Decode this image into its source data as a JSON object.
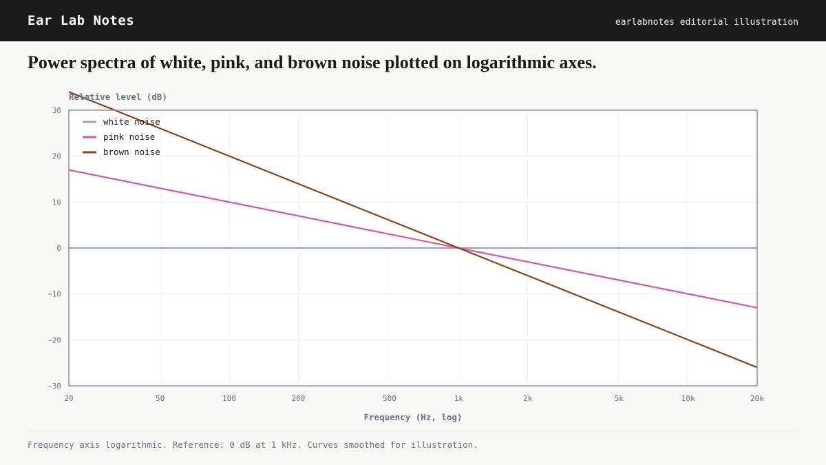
{
  "header": {
    "brand": "Ear Lab Notes",
    "tagline": "earlabnotes editorial illustration"
  },
  "headline": "Power spectra of white, pink, and brown noise plotted on logarithmic axes.",
  "footnote": "Frequency axis logarithmic. Reference: 0 dB at 1 kHz. Curves smoothed for illustration.",
  "chart_data": {
    "type": "line",
    "title": "",
    "xlabel": "Frequency (Hz, log)",
    "ylabel": "Relative level (dB)",
    "xscale": "log",
    "xlim": [
      20,
      20000
    ],
    "ylim": [
      -30,
      30
    ],
    "grid": true,
    "legend_position": "top-left",
    "x_ticks": [
      {
        "value": 20,
        "label": "20"
      },
      {
        "value": 50,
        "label": "50"
      },
      {
        "value": 100,
        "label": "100"
      },
      {
        "value": 200,
        "label": "200"
      },
      {
        "value": 500,
        "label": "500"
      },
      {
        "value": 1000,
        "label": "1k"
      },
      {
        "value": 2000,
        "label": "2k"
      },
      {
        "value": 5000,
        "label": "5k"
      },
      {
        "value": 10000,
        "label": "10k"
      },
      {
        "value": 20000,
        "label": "20k"
      }
    ],
    "y_ticks": [
      {
        "value": 30,
        "label": "30"
      },
      {
        "value": 20,
        "label": "20"
      },
      {
        "value": 10,
        "label": "10"
      },
      {
        "value": 0,
        "label": "0"
      },
      {
        "value": -10,
        "label": "−10"
      },
      {
        "value": -20,
        "label": "−20"
      },
      {
        "value": -30,
        "label": "−30"
      }
    ],
    "series": [
      {
        "name": "white noise",
        "color": "#94a3b8",
        "x": [
          20,
          20000
        ],
        "y": [
          0,
          0
        ]
      },
      {
        "name": "pink noise",
        "color": "#e0529c",
        "x": [
          20,
          1000,
          20000
        ],
        "y": [
          17,
          0,
          -13
        ]
      },
      {
        "name": "brown noise",
        "color": "#8b4513",
        "x": [
          20,
          1000,
          20000
        ],
        "y": [
          34,
          0,
          -26
        ]
      }
    ]
  }
}
